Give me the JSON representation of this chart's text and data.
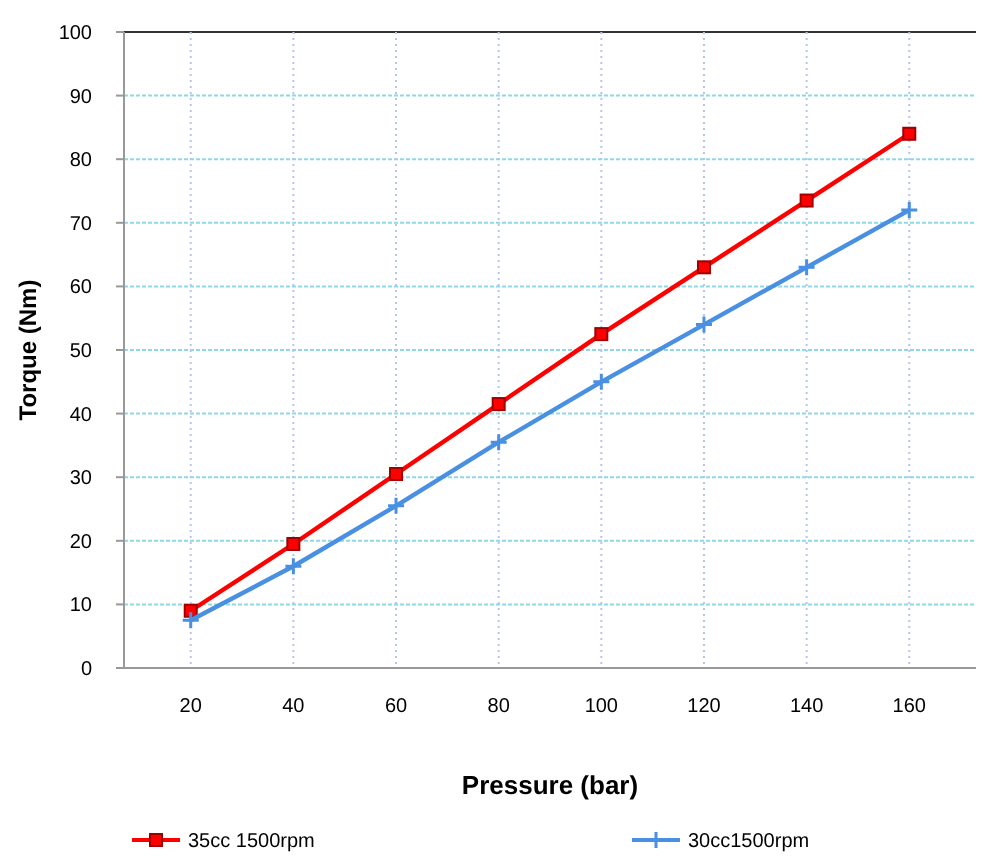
{
  "chart_data": {
    "type": "line",
    "xlabel": "Pressure (bar)",
    "ylabel": "Torque (Nm)",
    "categories": [
      "20",
      "40",
      "60",
      "80",
      "100",
      "120",
      "140",
      "160"
    ],
    "series": [
      {
        "name": "35cc 1500rpm",
        "color": "#ff0000",
        "marker": "square",
        "values": [
          9,
          19.5,
          30.5,
          41.5,
          52.5,
          63,
          73.5,
          84
        ]
      },
      {
        "name": "30cc1500rpm",
        "color": "#4a90e2",
        "marker": "cross",
        "values": [
          7.5,
          16,
          25.5,
          35.5,
          45,
          54,
          63,
          72
        ]
      }
    ],
    "ylim": [
      0,
      100
    ],
    "yticks": [
      0,
      10,
      20,
      30,
      40,
      50,
      60,
      70,
      80,
      90,
      100
    ],
    "grid": true,
    "legend": "bottom",
    "line_style": "solid"
  }
}
